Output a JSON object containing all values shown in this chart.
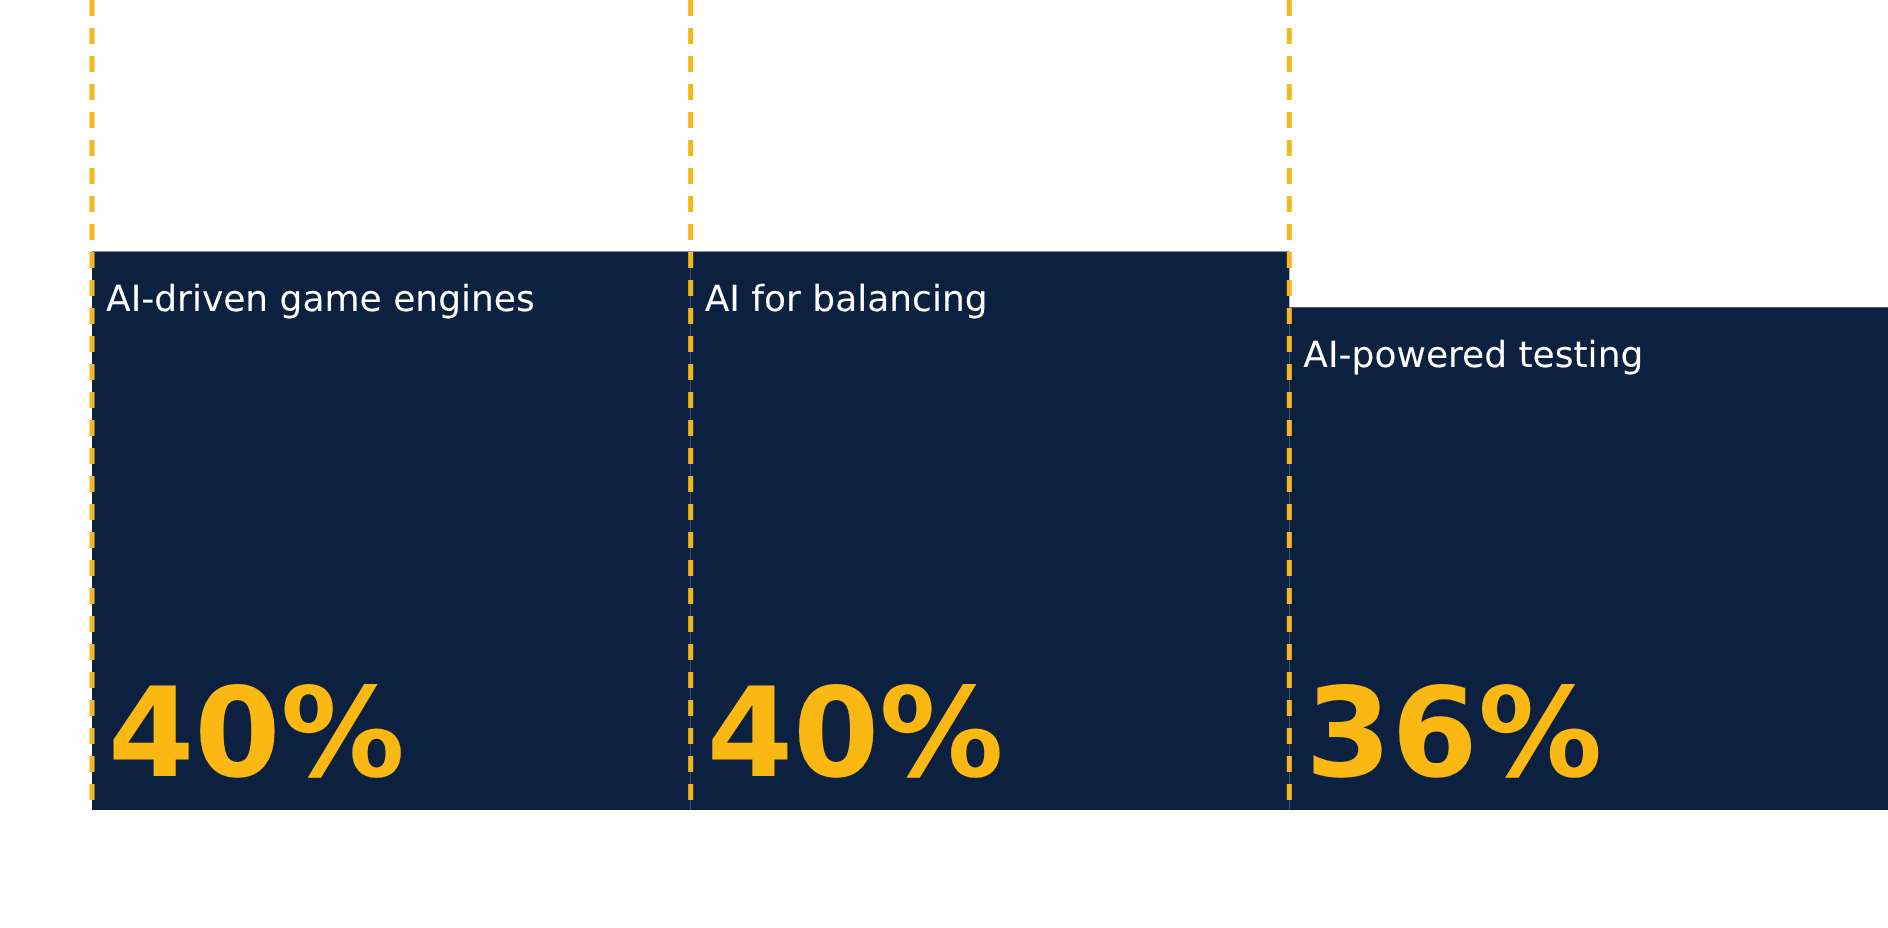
{
  "chart_data": {
    "type": "bar",
    "categories": [
      "AI-driven game engines",
      "AI for balancing",
      "AI-powered testing"
    ],
    "values": [
      40,
      40,
      36
    ],
    "value_labels": [
      "40%",
      "40%",
      "36%"
    ],
    "color": "#0c2140",
    "ref_lines": [
      {
        "axis": "x",
        "value": "AI-driven game engines",
        "color": "#f7b61d",
        "line_style": "dashed"
      },
      {
        "axis": "x",
        "value": "AI for balancing",
        "color": "#f7b61d",
        "line_style": "dashed"
      },
      {
        "axis": "x",
        "value": "AI-powered testing",
        "color": "#f7b61d",
        "line_style": "dashed"
      }
    ],
    "tick_labels": false
  }
}
